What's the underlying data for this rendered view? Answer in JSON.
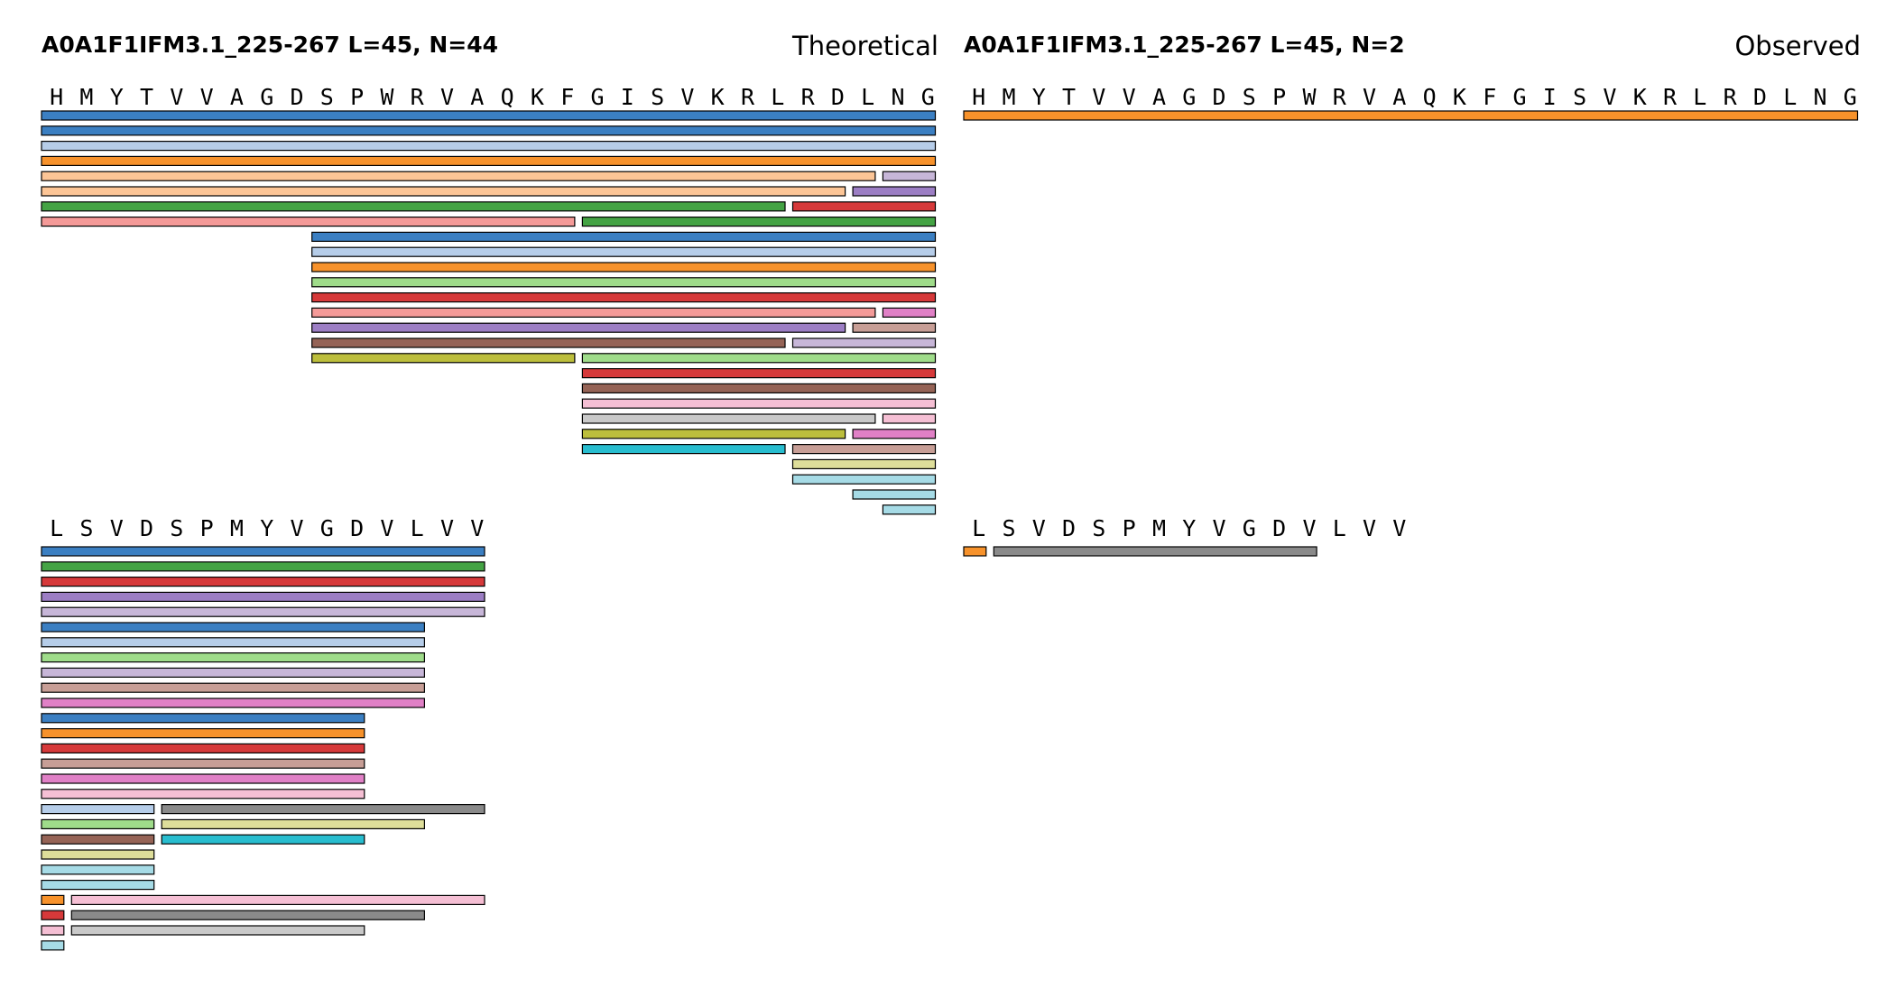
{
  "chart_data": {
    "type": "fragment-coverage",
    "colors": {
      "blue": "#3b7fc2",
      "lightblue": "#b6cde9",
      "orange": "#f7922b",
      "peach": "#fcc596",
      "green": "#44a344",
      "lightgreen": "#9fdc8a",
      "red": "#d6393a",
      "pink": "#f49a98",
      "purple": "#9c7ec4",
      "lavender": "#c7b6d8",
      "brown": "#956356",
      "tan": "#c79e96",
      "magenta": "#e080c6",
      "lightpink": "#f5bfd4",
      "gray": "#8a8a8a",
      "lightgray": "#c9c9c9",
      "olive": "#bcbe3c",
      "khaki": "#dede9a",
      "cyan": "#28bdcf",
      "lightcyan": "#a6dbe6"
    },
    "panels": [
      {
        "id": "theoretical",
        "title": "A0A1F1IFM3.1_225-267  L=45, N=44",
        "label": "Theoretical",
        "rows": [
          {
            "residues": [
              "H",
              "M",
              "Y",
              "T",
              "V",
              "V",
              "A",
              "G",
              "D",
              "S",
              "P",
              "W",
              "R",
              "V",
              "A",
              "Q",
              "K",
              "F",
              "G",
              "I",
              "S",
              "V",
              "K",
              "R",
              "L",
              "R",
              "D",
              "L",
              "N",
              "G"
            ],
            "start": 1,
            "fragments": [
              {
                "start": 1,
                "end": 30,
                "level": 0,
                "color": "blue"
              },
              {
                "start": 1,
                "end": 30,
                "level": 1,
                "color": "blue"
              },
              {
                "start": 1,
                "end": 30,
                "level": 2,
                "color": "lightblue"
              },
              {
                "start": 1,
                "end": 30,
                "level": 3,
                "color": "orange"
              },
              {
                "start": 1,
                "end": 28,
                "level": 4,
                "color": "peach"
              },
              {
                "start": 29,
                "end": 30,
                "level": 4,
                "color": "lavender"
              },
              {
                "start": 1,
                "end": 27,
                "level": 5,
                "color": "peach"
              },
              {
                "start": 28,
                "end": 30,
                "level": 5,
                "color": "purple"
              },
              {
                "start": 1,
                "end": 25,
                "level": 6,
                "color": "green"
              },
              {
                "start": 26,
                "end": 30,
                "level": 6,
                "color": "red"
              },
              {
                "start": 1,
                "end": 18,
                "level": 7,
                "color": "pink"
              },
              {
                "start": 19,
                "end": 30,
                "level": 7,
                "color": "green"
              },
              {
                "start": 10,
                "end": 30,
                "level": 8,
                "color": "blue"
              },
              {
                "start": 10,
                "end": 30,
                "level": 9,
                "color": "lightblue"
              },
              {
                "start": 10,
                "end": 30,
                "level": 10,
                "color": "orange"
              },
              {
                "start": 10,
                "end": 30,
                "level": 11,
                "color": "lightgreen"
              },
              {
                "start": 10,
                "end": 30,
                "level": 12,
                "color": "red"
              },
              {
                "start": 10,
                "end": 28,
                "level": 13,
                "color": "pink"
              },
              {
                "start": 29,
                "end": 30,
                "level": 13,
                "color": "magenta"
              },
              {
                "start": 10,
                "end": 27,
                "level": 14,
                "color": "purple"
              },
              {
                "start": 28,
                "end": 30,
                "level": 14,
                "color": "tan"
              },
              {
                "start": 10,
                "end": 25,
                "level": 15,
                "color": "brown"
              },
              {
                "start": 26,
                "end": 30,
                "level": 15,
                "color": "lavender"
              },
              {
                "start": 10,
                "end": 18,
                "level": 16,
                "color": "olive"
              },
              {
                "start": 19,
                "end": 30,
                "level": 16,
                "color": "lightgreen"
              },
              {
                "start": 19,
                "end": 30,
                "level": 17,
                "color": "red"
              },
              {
                "start": 19,
                "end": 30,
                "level": 18,
                "color": "brown"
              },
              {
                "start": 19,
                "end": 30,
                "level": 19,
                "color": "lightpink"
              },
              {
                "start": 19,
                "end": 28,
                "level": 20,
                "color": "lightgray"
              },
              {
                "start": 29,
                "end": 30,
                "level": 20,
                "color": "lightpink"
              },
              {
                "start": 19,
                "end": 27,
                "level": 21,
                "color": "olive"
              },
              {
                "start": 28,
                "end": 30,
                "level": 21,
                "color": "magenta"
              },
              {
                "start": 19,
                "end": 25,
                "level": 22,
                "color": "cyan"
              },
              {
                "start": 26,
                "end": 30,
                "level": 22,
                "color": "tan"
              },
              {
                "start": 26,
                "end": 30,
                "level": 23,
                "color": "khaki"
              },
              {
                "start": 26,
                "end": 30,
                "level": 24,
                "color": "lightcyan"
              },
              {
                "start": 28,
                "end": 30,
                "level": 25,
                "color": "lightcyan"
              },
              {
                "start": 29,
                "end": 30,
                "level": 26,
                "color": "lightcyan"
              }
            ]
          },
          {
            "residues": [
              "L",
              "S",
              "V",
              "D",
              "S",
              "P",
              "M",
              "Y",
              "V",
              "G",
              "D",
              "V",
              "L",
              "V",
              "V"
            ],
            "start": 31,
            "fragments": [
              {
                "start": 31,
                "end": 45,
                "level": 0,
                "color": "blue"
              },
              {
                "start": 31,
                "end": 45,
                "level": 1,
                "color": "green"
              },
              {
                "start": 31,
                "end": 45,
                "level": 2,
                "color": "red"
              },
              {
                "start": 31,
                "end": 45,
                "level": 3,
                "color": "purple"
              },
              {
                "start": 31,
                "end": 45,
                "level": 4,
                "color": "lavender"
              },
              {
                "start": 31,
                "end": 43,
                "level": 5,
                "color": "blue"
              },
              {
                "start": 31,
                "end": 43,
                "level": 6,
                "color": "lightblue"
              },
              {
                "start": 31,
                "end": 43,
                "level": 7,
                "color": "lightgreen"
              },
              {
                "start": 31,
                "end": 43,
                "level": 8,
                "color": "lavender"
              },
              {
                "start": 31,
                "end": 43,
                "level": 9,
                "color": "tan"
              },
              {
                "start": 31,
                "end": 43,
                "level": 10,
                "color": "magenta"
              },
              {
                "start": 31,
                "end": 41,
                "level": 11,
                "color": "blue"
              },
              {
                "start": 31,
                "end": 41,
                "level": 12,
                "color": "orange"
              },
              {
                "start": 31,
                "end": 41,
                "level": 13,
                "color": "red"
              },
              {
                "start": 31,
                "end": 41,
                "level": 14,
                "color": "tan"
              },
              {
                "start": 31,
                "end": 41,
                "level": 15,
                "color": "magenta"
              },
              {
                "start": 31,
                "end": 41,
                "level": 16,
                "color": "lightpink"
              },
              {
                "start": 31,
                "end": 34,
                "level": 17,
                "color": "lightblue"
              },
              {
                "start": 35,
                "end": 45,
                "level": 17,
                "color": "gray"
              },
              {
                "start": 31,
                "end": 34,
                "level": 18,
                "color": "lightgreen"
              },
              {
                "start": 35,
                "end": 43,
                "level": 18,
                "color": "khaki"
              },
              {
                "start": 31,
                "end": 34,
                "level": 19,
                "color": "brown"
              },
              {
                "start": 35,
                "end": 41,
                "level": 19,
                "color": "cyan"
              },
              {
                "start": 31,
                "end": 34,
                "level": 20,
                "color": "khaki"
              },
              {
                "start": 31,
                "end": 34,
                "level": 21,
                "color": "lightcyan"
              },
              {
                "start": 31,
                "end": 34,
                "level": 22,
                "color": "lightcyan"
              },
              {
                "start": 31,
                "end": 31,
                "level": 23,
                "color": "orange"
              },
              {
                "start": 32,
                "end": 45,
                "level": 23,
                "color": "lightpink"
              },
              {
                "start": 31,
                "end": 31,
                "level": 24,
                "color": "red"
              },
              {
                "start": 32,
                "end": 43,
                "level": 24,
                "color": "gray"
              },
              {
                "start": 31,
                "end": 31,
                "level": 25,
                "color": "lightpink"
              },
              {
                "start": 32,
                "end": 41,
                "level": 25,
                "color": "lightgray"
              },
              {
                "start": 31,
                "end": 31,
                "level": 26,
                "color": "lightcyan"
              }
            ]
          }
        ]
      },
      {
        "id": "observed",
        "title": "A0A1F1IFM3.1_225-267  L=45, N=2",
        "label": "Observed",
        "rows": [
          {
            "residues": [
              "H",
              "M",
              "Y",
              "T",
              "V",
              "V",
              "A",
              "G",
              "D",
              "S",
              "P",
              "W",
              "R",
              "V",
              "A",
              "Q",
              "K",
              "F",
              "G",
              "I",
              "S",
              "V",
              "K",
              "R",
              "L",
              "R",
              "D",
              "L",
              "N",
              "G"
            ],
            "start": 1,
            "fragments": [
              {
                "start": 1,
                "end": 30,
                "level": 0,
                "color": "orange"
              }
            ]
          },
          {
            "residues": [
              "L",
              "S",
              "V",
              "D",
              "S",
              "P",
              "M",
              "Y",
              "V",
              "G",
              "D",
              "V",
              "L",
              "V",
              "V"
            ],
            "start": 31,
            "fragments": [
              {
                "start": 31,
                "end": 31,
                "level": 0,
                "color": "orange"
              },
              {
                "start": 32,
                "end": 42,
                "level": 0,
                "color": "gray"
              }
            ]
          }
        ]
      }
    ]
  }
}
